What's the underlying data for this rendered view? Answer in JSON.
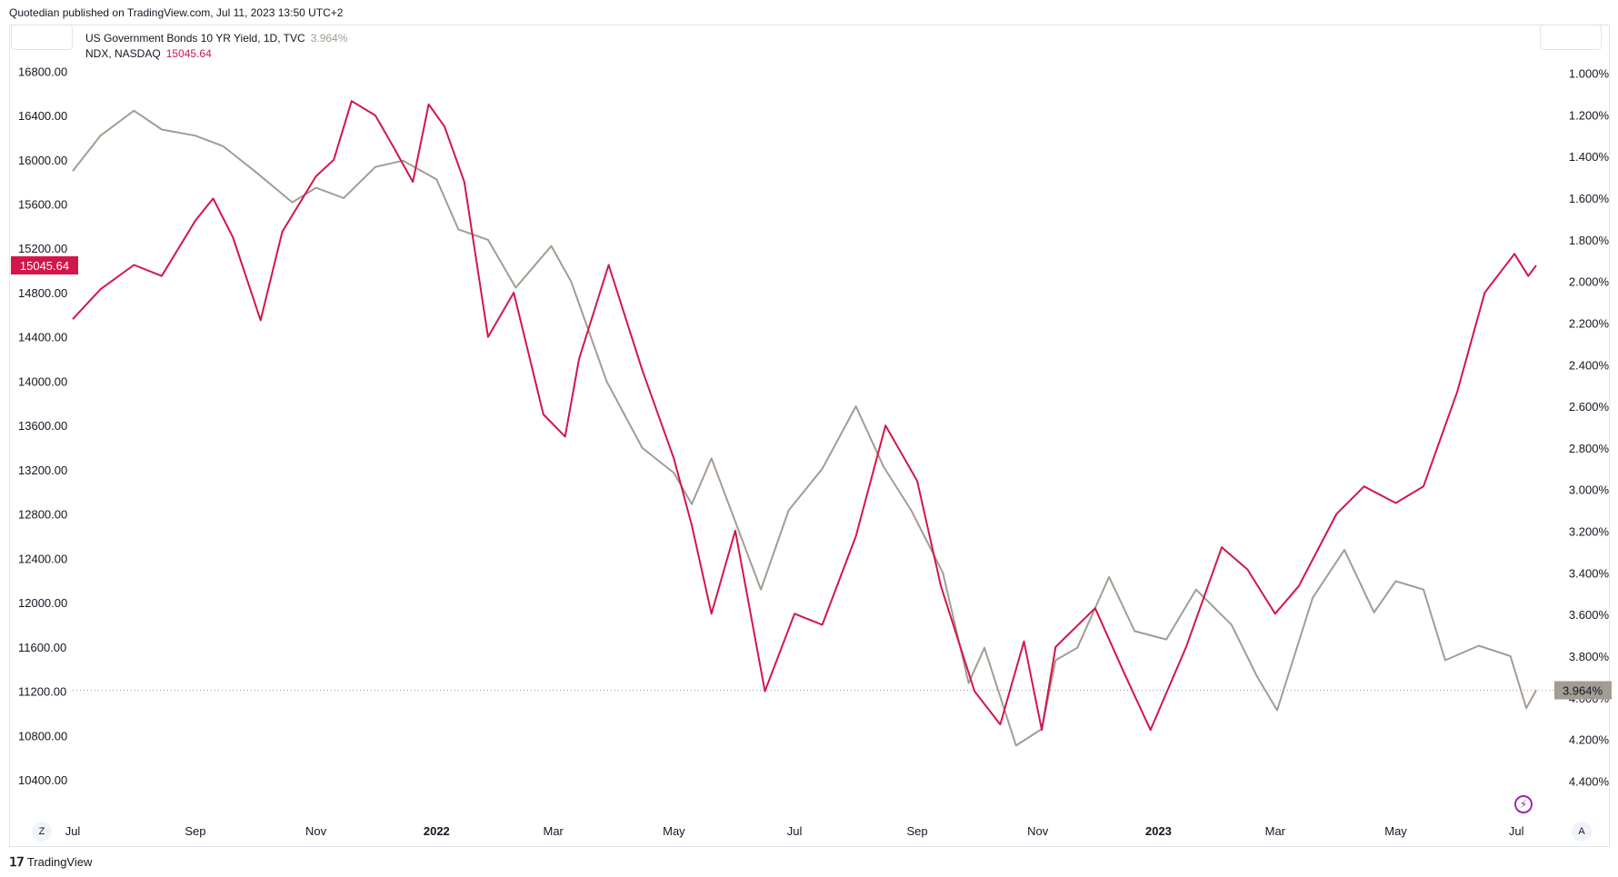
{
  "header": {
    "published": "Quotedian published on TradingView.com, Jul 11, 2023 13:50 UTC+2"
  },
  "legend": {
    "series1": {
      "label": "US Government Bonds 10 YR Yield, 1D, TVC",
      "value": "3.964%"
    },
    "series2": {
      "label": "NDX, NASDAQ",
      "value": "15045.64"
    }
  },
  "badges": {
    "left": "15045.64",
    "right": "3.964%"
  },
  "colors": {
    "ndx": "#d1164b",
    "yield": "#a39c93",
    "grid": "#e0e3eb",
    "text": "#131722"
  },
  "buttons": {
    "z": "Z",
    "a": "A"
  },
  "footer": {
    "brand": "TradingView"
  },
  "chart_data": {
    "type": "line",
    "x_axis": {
      "type": "date",
      "range": [
        "2021-07-01",
        "2023-07-11"
      ],
      "ticks": [
        "Jul",
        "Sep",
        "Nov",
        "2022",
        "Mar",
        "May",
        "Jul",
        "Sep",
        "Nov",
        "2023",
        "Mar",
        "May",
        "Jul"
      ]
    },
    "y_left": {
      "series": "NDX",
      "ylim": [
        10220,
        16950
      ],
      "ticks": [
        "16800.00",
        "16400.00",
        "16000.00",
        "15600.00",
        "15200.00",
        "14800.00",
        "14400.00",
        "14000.00",
        "13600.00",
        "13200.00",
        "12800.00",
        "12400.00",
        "12000.00",
        "11600.00",
        "11200.00",
        "10800.00",
        "10400.00"
      ]
    },
    "y_right": {
      "series": "US Government Bonds 10 YR Yield",
      "inverted": true,
      "ylim": [
        0.91,
        4.49
      ],
      "ticks": [
        "1.000%",
        "1.200%",
        "1.400%",
        "1.600%",
        "1.800%",
        "2.000%",
        "2.200%",
        "2.400%",
        "2.600%",
        "2.800%",
        "3.000%",
        "3.200%",
        "3.400%",
        "3.600%",
        "3.800%",
        "4.000%",
        "4.200%",
        "4.400%"
      ]
    },
    "series": [
      {
        "name": "NDX, NASDAQ",
        "axis": "left",
        "color": "#d1164b",
        "dates": [
          "2021-07-01",
          "2021-07-15",
          "2021-08-01",
          "2021-08-15",
          "2021-09-01",
          "2021-09-10",
          "2021-09-20",
          "2021-10-04",
          "2021-10-15",
          "2021-11-01",
          "2021-11-10",
          "2021-11-19",
          "2021-12-01",
          "2021-12-10",
          "2021-12-20",
          "2021-12-28",
          "2022-01-05",
          "2022-01-15",
          "2022-01-27",
          "2022-02-09",
          "2022-02-24",
          "2022-03-07",
          "2022-03-14",
          "2022-03-29",
          "2022-04-15",
          "2022-05-01",
          "2022-05-10",
          "2022-05-20",
          "2022-06-01",
          "2022-06-16",
          "2022-07-01",
          "2022-07-15",
          "2022-08-01",
          "2022-08-16",
          "2022-09-01",
          "2022-09-13",
          "2022-09-30",
          "2022-10-13",
          "2022-10-25",
          "2022-11-03",
          "2022-11-10",
          "2022-11-30",
          "2022-12-15",
          "2022-12-28",
          "2023-01-15",
          "2023-02-02",
          "2023-02-15",
          "2023-03-01",
          "2023-03-13",
          "2023-04-01",
          "2023-04-15",
          "2023-05-01",
          "2023-05-15",
          "2023-06-01",
          "2023-06-15",
          "2023-06-30",
          "2023-07-07",
          "2023-07-11"
        ],
        "values": [
          14560,
          14830,
          15050,
          14950,
          15450,
          15650,
          15300,
          14550,
          15350,
          15850,
          16000,
          16530,
          16400,
          16120,
          15800,
          16500,
          16300,
          15800,
          14400,
          14800,
          13700,
          13500,
          14200,
          15050,
          14100,
          13300,
          12700,
          11900,
          12650,
          11200,
          11900,
          11800,
          12600,
          13600,
          13100,
          12150,
          11200,
          10900,
          11650,
          10850,
          11600,
          11950,
          11350,
          10850,
          11600,
          12500,
          12300,
          11900,
          12150,
          12800,
          13050,
          12900,
          13050,
          13900,
          14800,
          15150,
          14950,
          15045.64
        ]
      },
      {
        "name": "US Government Bonds 10 YR Yield, 1D, TVC",
        "axis": "right",
        "color": "#a39c93",
        "dates": [
          "2021-07-01",
          "2021-07-15",
          "2021-08-01",
          "2021-08-15",
          "2021-09-01",
          "2021-09-15",
          "2021-10-01",
          "2021-10-20",
          "2021-11-01",
          "2021-11-15",
          "2021-12-01",
          "2021-12-15",
          "2022-01-01",
          "2022-01-12",
          "2022-01-27",
          "2022-02-10",
          "2022-02-28",
          "2022-03-10",
          "2022-03-28",
          "2022-04-15",
          "2022-05-01",
          "2022-05-10",
          "2022-05-20",
          "2022-06-14",
          "2022-06-28",
          "2022-07-15",
          "2022-08-01",
          "2022-08-15",
          "2022-08-29",
          "2022-09-14",
          "2022-09-27",
          "2022-10-05",
          "2022-10-21",
          "2022-11-03",
          "2022-11-10",
          "2022-11-21",
          "2022-12-07",
          "2022-12-20",
          "2023-01-05",
          "2023-01-20",
          "2023-02-07",
          "2023-02-20",
          "2023-03-02",
          "2023-03-20",
          "2023-04-05",
          "2023-04-20",
          "2023-05-01",
          "2023-05-15",
          "2023-05-26",
          "2023-06-12",
          "2023-06-28",
          "2023-07-06",
          "2023-07-11"
        ],
        "values": [
          1.47,
          1.3,
          1.18,
          1.27,
          1.3,
          1.35,
          1.47,
          1.62,
          1.55,
          1.6,
          1.45,
          1.42,
          1.51,
          1.75,
          1.8,
          2.03,
          1.83,
          2.0,
          2.48,
          2.8,
          2.92,
          3.07,
          2.85,
          3.48,
          3.1,
          2.9,
          2.6,
          2.89,
          3.1,
          3.4,
          3.93,
          3.76,
          4.23,
          4.15,
          3.82,
          3.76,
          3.42,
          3.68,
          3.72,
          3.48,
          3.65,
          3.9,
          4.06,
          3.52,
          3.29,
          3.59,
          3.44,
          3.48,
          3.82,
          3.75,
          3.8,
          4.05,
          3.964
        ]
      }
    ]
  }
}
